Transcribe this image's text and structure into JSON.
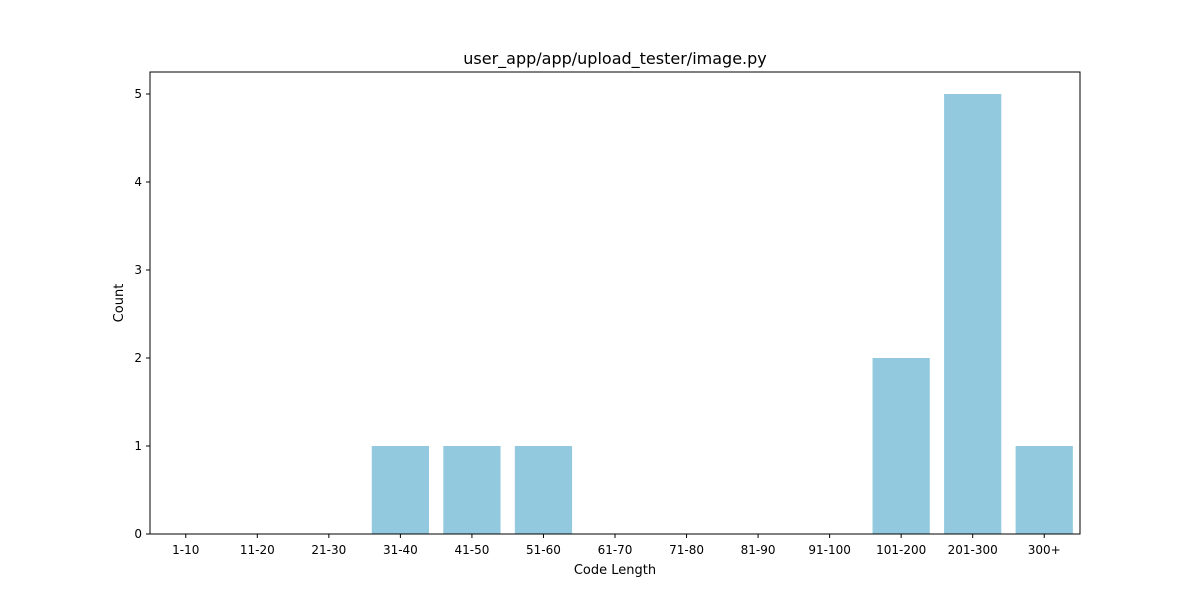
{
  "chart_data": {
    "type": "bar",
    "title": "user_app/app/upload_tester/image.py",
    "xlabel": "Code Length",
    "ylabel": "Count",
    "categories": [
      "1-10",
      "11-20",
      "21-30",
      "31-40",
      "41-50",
      "51-60",
      "61-70",
      "71-80",
      "81-90",
      "91-100",
      "101-200",
      "201-300",
      "300+"
    ],
    "values": [
      0,
      0,
      0,
      1,
      1,
      1,
      0,
      0,
      0,
      0,
      2,
      5,
      1
    ],
    "ylim": [
      0,
      5.25
    ],
    "yticks": [
      0,
      1,
      2,
      3,
      4,
      5
    ],
    "bar_color": "#92C9DF",
    "grid": false,
    "legend": "none"
  }
}
